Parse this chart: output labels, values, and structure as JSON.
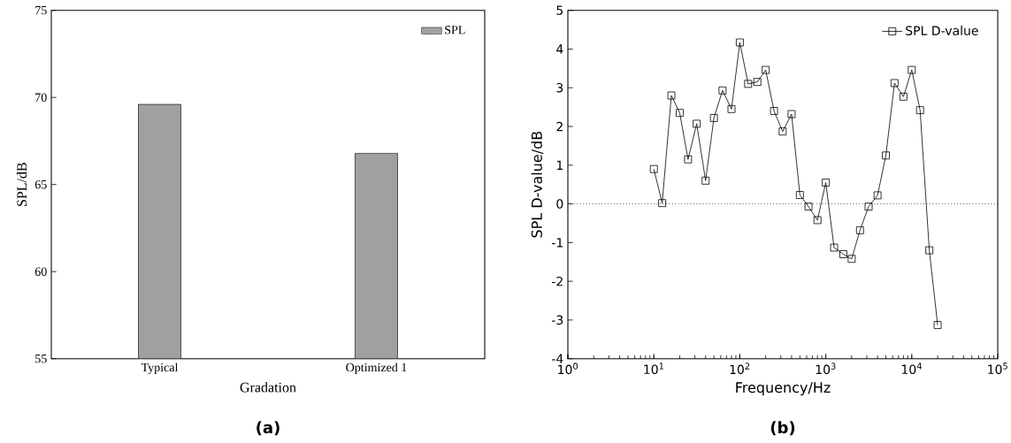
{
  "chart_data": [
    {
      "type": "bar",
      "xlabel": "Gradation",
      "ylabel": "SPL/dB",
      "categories": [
        "Typical",
        "Optimized 1"
      ],
      "series": [
        {
          "name": "SPL",
          "color": "#a0a0a0",
          "values": [
            69.6,
            66.8
          ]
        }
      ],
      "ylim": [
        55,
        75
      ],
      "yticks": [
        55,
        60,
        65,
        70,
        75
      ],
      "legend": "top right",
      "annotations": [
        "(a)"
      ]
    },
    {
      "type": "line",
      "xlabel": "Frequency/Hz",
      "ylabel": "SPL D-value/dB",
      "x": [
        10,
        12.5,
        16,
        20,
        25,
        31.5,
        40,
        50,
        63,
        80,
        100,
        125,
        160,
        200,
        250,
        315,
        400,
        500,
        630,
        800,
        1000,
        1250,
        1600,
        2000,
        2500,
        3150,
        4000,
        5000,
        6300,
        8000,
        10000,
        12500,
        16000,
        20000
      ],
      "series": [
        {
          "name": "SPL D-value",
          "color": "#000000",
          "values": [
            0.9,
            0.02,
            2.8,
            2.35,
            1.15,
            2.07,
            0.6,
            2.22,
            2.93,
            2.45,
            4.17,
            3.1,
            3.15,
            3.46,
            2.4,
            1.87,
            2.32,
            0.23,
            -0.07,
            -0.42,
            0.55,
            -1.13,
            -1.3,
            -1.42,
            -0.68,
            -0.07,
            0.22,
            1.25,
            3.12,
            2.77,
            3.46,
            2.42,
            -1.2,
            -3.13
          ]
        }
      ],
      "xlim": [
        1,
        100000
      ],
      "xticks": [
        {
          "value": 1,
          "label": "10$^{0}$"
        },
        {
          "value": 10,
          "label": "10$^{1}$"
        },
        {
          "value": 100,
          "label": "10$^{2}$"
        },
        {
          "value": 1000,
          "label": "10$^{3}$"
        },
        {
          "value": 10000,
          "label": "10$^{4}$"
        },
        {
          "value": 100000,
          "label": "10$^{5}$"
        }
      ],
      "ylim": [
        -4,
        5
      ],
      "yticks": [
        -4,
        -3,
        -2,
        -1,
        0,
        1,
        2,
        3,
        4,
        5
      ],
      "log": "x",
      "marker": "square",
      "line_style": "solid",
      "ref_lines": [
        {
          "axis": "y",
          "value": 0,
          "line_style": "dotted",
          "color": "#000000"
        }
      ],
      "legend": "top right",
      "annotations": [
        "(b)"
      ]
    }
  ]
}
